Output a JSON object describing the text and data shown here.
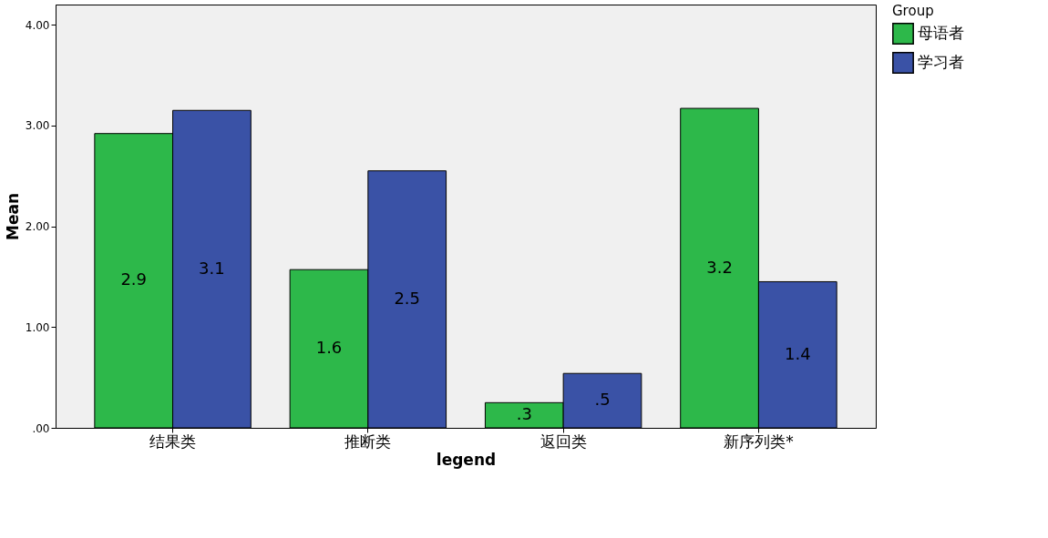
{
  "chart_data": {
    "type": "bar",
    "xlabel": "legend",
    "ylabel": "Mean",
    "legend_title": "Group",
    "legend": "top right",
    "grid": false,
    "categories": [
      "结果类",
      "推断类",
      "返回类",
      "新序列类*"
    ],
    "series": [
      {
        "name": "母语者",
        "color": "#2db84a",
        "values": [
          2.92,
          1.57,
          0.25,
          3.17
        ],
        "value_labels": [
          "2.9",
          "1.6",
          ".3",
          "3.2"
        ]
      },
      {
        "name": "学习者",
        "color": "#3a52a6",
        "values": [
          3.15,
          2.55,
          0.54,
          1.45
        ],
        "value_labels": [
          "3.1",
          "2.5",
          ".5",
          "1.4"
        ]
      }
    ],
    "ylim": [
      0,
      4.2
    ],
    "yticks": [
      {
        "value": 0,
        "label": ".00"
      },
      {
        "value": 1,
        "label": "1.00"
      },
      {
        "value": 2,
        "label": "2.00"
      },
      {
        "value": 3,
        "label": "3.00"
      },
      {
        "value": 4,
        "label": "4.00"
      }
    ]
  }
}
